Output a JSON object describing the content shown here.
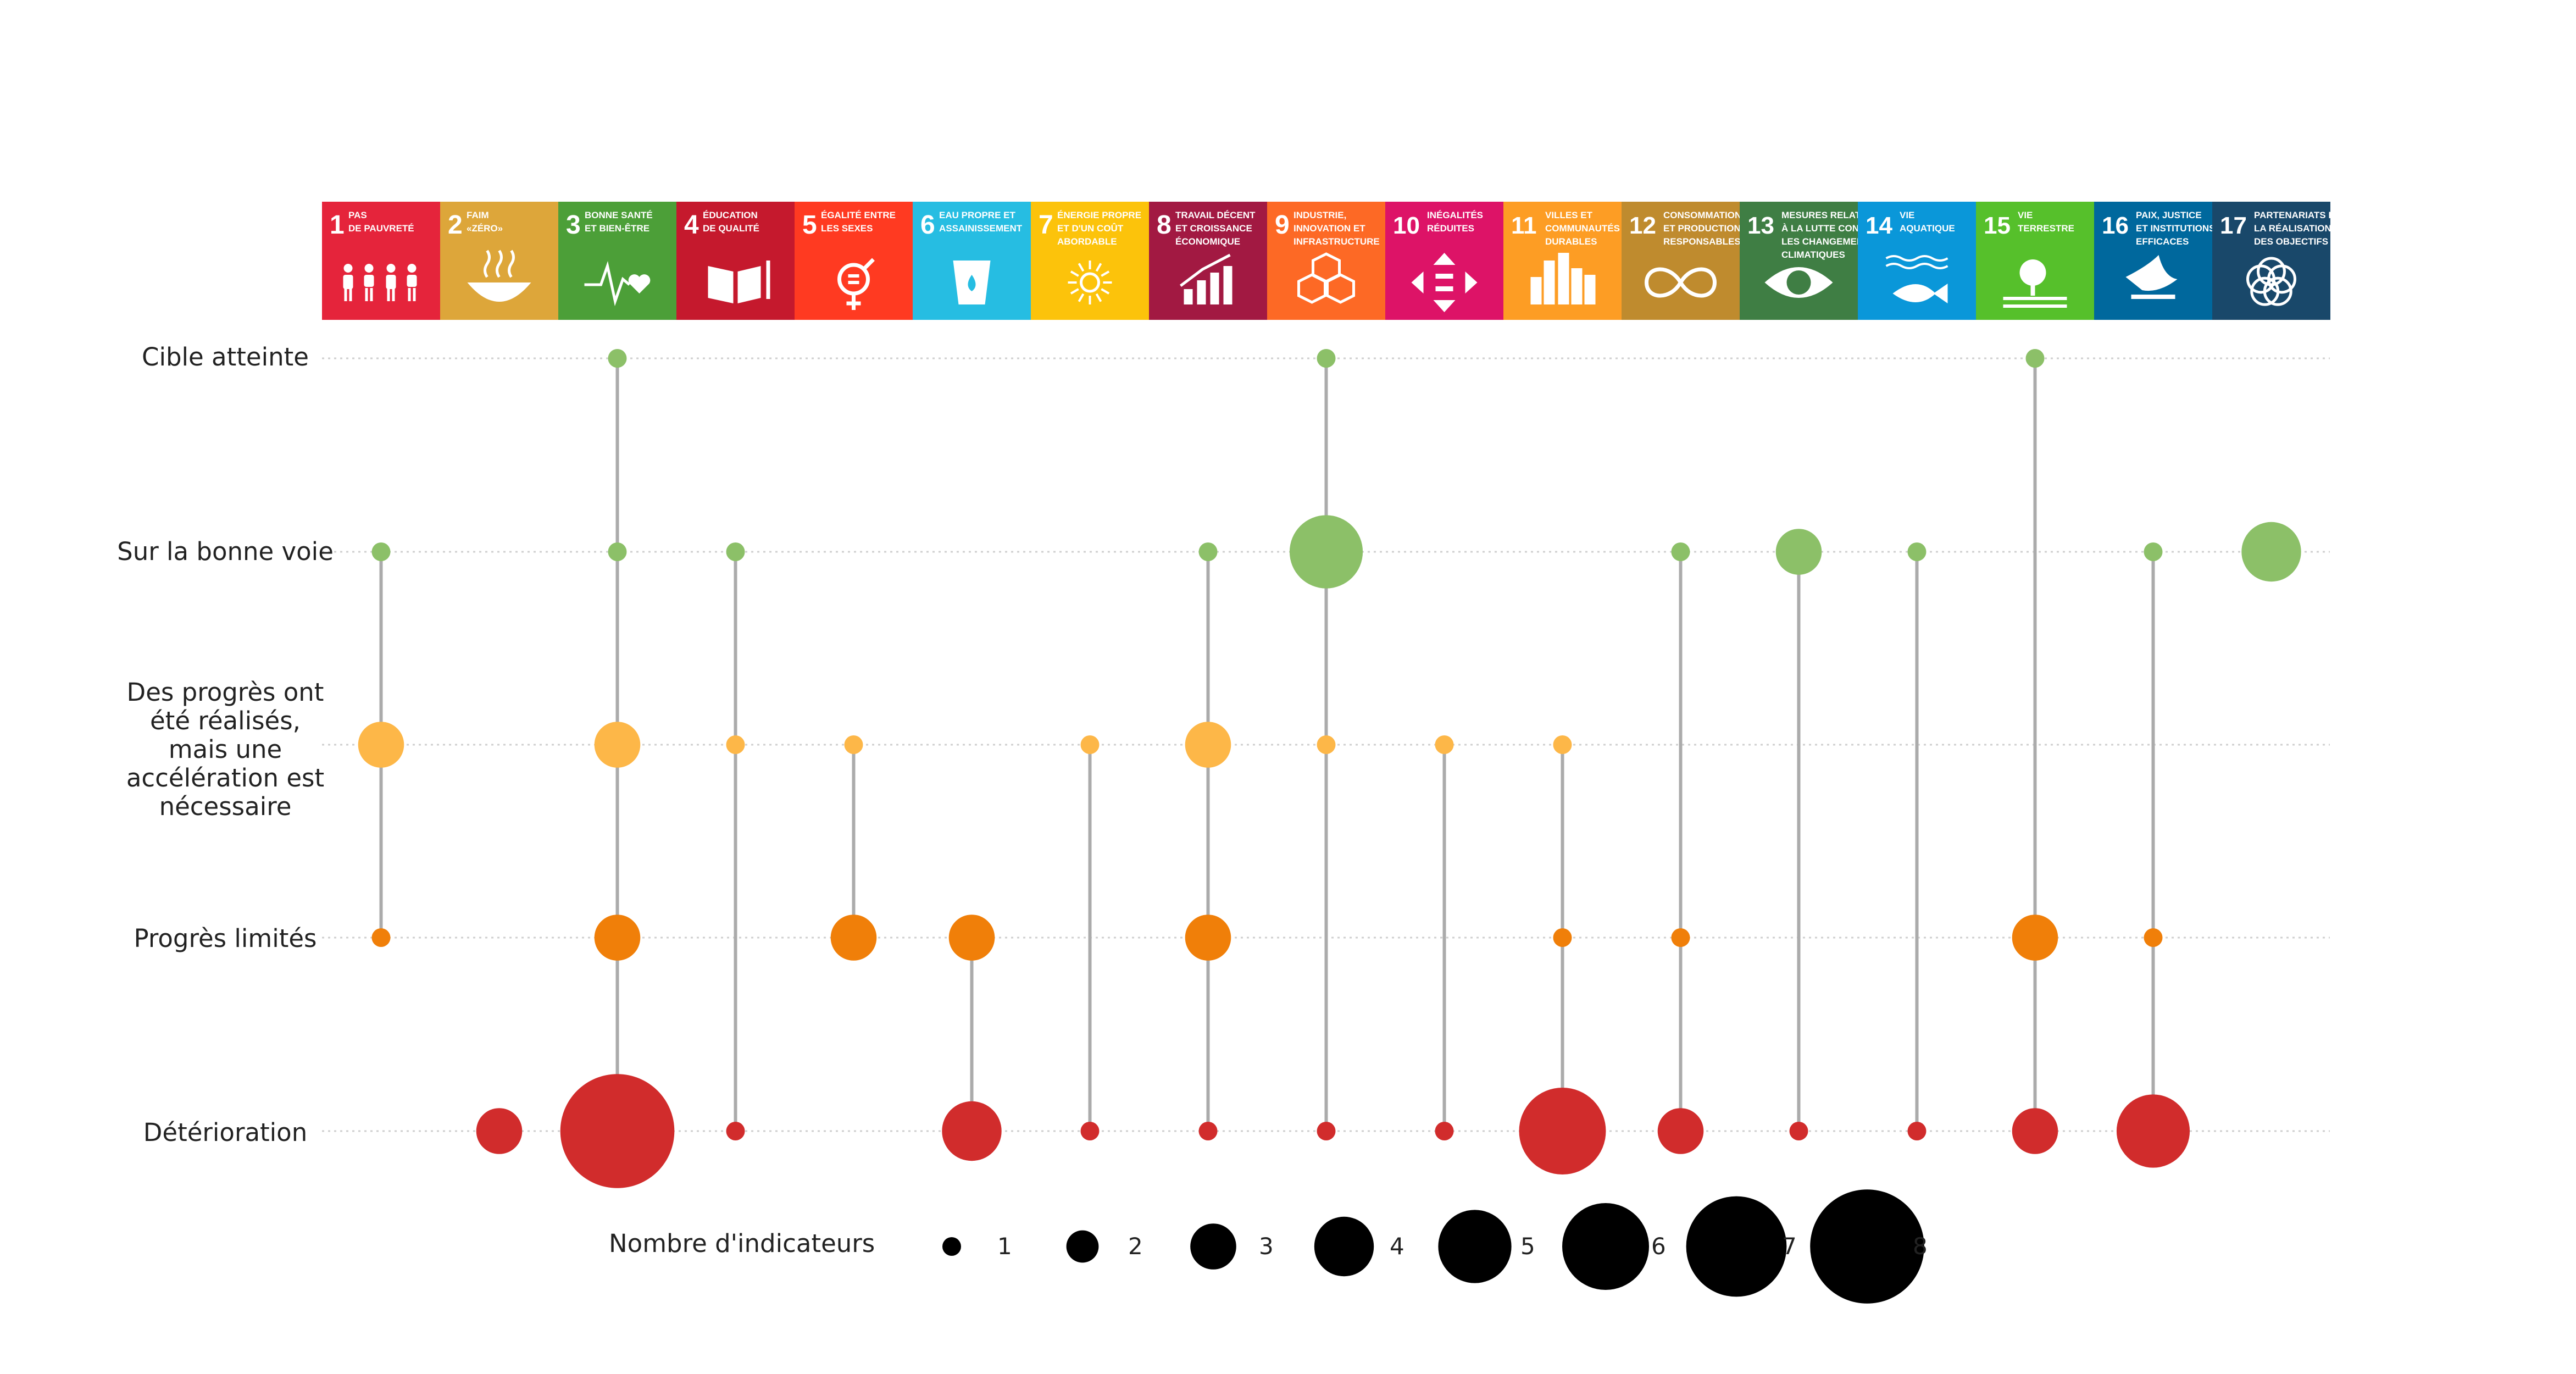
{
  "chart_data": {
    "type": "scatter",
    "title": "",
    "xlabel": "",
    "ylabel": "",
    "categories": [
      {
        "num": "1",
        "label": [
          "PAS",
          "DE PAUVRETÉ"
        ],
        "color": "#E5243B",
        "icon": "family-icon"
      },
      {
        "num": "2",
        "label": [
          "FAIM",
          "«ZÉRO»"
        ],
        "color": "#DDA63A",
        "icon": "bowl-icon"
      },
      {
        "num": "3",
        "label": [
          "BONNE SANTÉ",
          "ET BIEN-ÊTRE"
        ],
        "color": "#4C9F38",
        "icon": "heartbeat-icon"
      },
      {
        "num": "4",
        "label": [
          "ÉDUCATION",
          "DE QUALITÉ"
        ],
        "color": "#C5192D",
        "icon": "book-icon"
      },
      {
        "num": "5",
        "label": [
          "ÉGALITÉ ENTRE",
          "LES SEXES"
        ],
        "color": "#FF3A21",
        "icon": "gender-icon"
      },
      {
        "num": "6",
        "label": [
          "EAU PROPRE ET",
          "ASSAINISSEMENT"
        ],
        "color": "#26BDE2",
        "icon": "water-icon"
      },
      {
        "num": "7",
        "label": [
          "ÉNERGIE PROPRE",
          "ET D'UN COÛT",
          "ABORDABLE"
        ],
        "color": "#FCC30B",
        "icon": "sun-icon"
      },
      {
        "num": "8",
        "label": [
          "TRAVAIL DÉCENT",
          "ET CROISSANCE",
          "ÉCONOMIQUE"
        ],
        "color": "#A21942",
        "icon": "growth-icon"
      },
      {
        "num": "9",
        "label": [
          "INDUSTRIE,",
          "INNOVATION ET",
          "INFRASTRUCTURE"
        ],
        "color": "#FD6925",
        "icon": "cubes-icon"
      },
      {
        "num": "10",
        "label": [
          "INÉGALITÉS",
          "RÉDUITES"
        ],
        "color": "#DD1367",
        "icon": "equality-arrows-icon"
      },
      {
        "num": "11",
        "label": [
          "VILLES ET",
          "COMMUNAUTÉS",
          "DURABLES"
        ],
        "color": "#FD9D24",
        "icon": "city-icon"
      },
      {
        "num": "12",
        "label": [
          "CONSOMMATION",
          "ET PRODUCTION",
          "RESPONSABLES"
        ],
        "color": "#BF8B2E",
        "icon": "infinity-icon"
      },
      {
        "num": "13",
        "label": [
          "MESURES RELATIVES",
          "À LA LUTTE CONTRE",
          "LES CHANGEMENTS",
          "CLIMATIQUES"
        ],
        "color": "#3F7E44",
        "icon": "eye-globe-icon"
      },
      {
        "num": "14",
        "label": [
          "VIE",
          "AQUATIQUE"
        ],
        "color": "#0A97D9",
        "icon": "fish-icon"
      },
      {
        "num": "15",
        "label": [
          "VIE",
          "TERRESTRE"
        ],
        "color": "#56C02B",
        "icon": "tree-icon"
      },
      {
        "num": "16",
        "label": [
          "PAIX, JUSTICE",
          "ET INSTITUTIONS",
          "EFFICACES"
        ],
        "color": "#00689D",
        "icon": "dove-icon"
      },
      {
        "num": "17",
        "label": [
          "PARTENARIATS POUR",
          "LA RÉALISATION",
          "DES OBJECTIFS"
        ],
        "color": "#19486A",
        "icon": "rings-icon"
      }
    ],
    "levels": [
      {
        "key": "cible",
        "label": "Cible atteinte",
        "color": "#8CC068"
      },
      {
        "key": "bonne_voie",
        "label": "Sur la bonne voie",
        "color": "#8CC068"
      },
      {
        "key": "acceleration",
        "label": "Des progrès ont été réalisés, mais une accélération est nécessaire",
        "color": "#FDB748"
      },
      {
        "key": "limites",
        "label": "Progrès limités",
        "color": "#F07F09"
      },
      {
        "key": "deterioration",
        "label": "Détérioration",
        "color": "#D12C2C"
      }
    ],
    "points": [
      {
        "sdg": "1",
        "level": "bonne_voie",
        "count": 1
      },
      {
        "sdg": "1",
        "level": "acceleration",
        "count": 3
      },
      {
        "sdg": "1",
        "level": "limites",
        "count": 1
      },
      {
        "sdg": "2",
        "level": "deterioration",
        "count": 3
      },
      {
        "sdg": "3",
        "level": "cible",
        "count": 1
      },
      {
        "sdg": "3",
        "level": "bonne_voie",
        "count": 1
      },
      {
        "sdg": "3",
        "level": "acceleration",
        "count": 3
      },
      {
        "sdg": "3",
        "level": "limites",
        "count": 3
      },
      {
        "sdg": "3",
        "level": "deterioration",
        "count": 8
      },
      {
        "sdg": "4",
        "level": "bonne_voie",
        "count": 1
      },
      {
        "sdg": "4",
        "level": "acceleration",
        "count": 1
      },
      {
        "sdg": "4",
        "level": "deterioration",
        "count": 1
      },
      {
        "sdg": "5",
        "level": "acceleration",
        "count": 1
      },
      {
        "sdg": "5",
        "level": "limites",
        "count": 3
      },
      {
        "sdg": "6",
        "level": "limites",
        "count": 3
      },
      {
        "sdg": "6",
        "level": "deterioration",
        "count": 4
      },
      {
        "sdg": "7",
        "level": "acceleration",
        "count": 1
      },
      {
        "sdg": "7",
        "level": "deterioration",
        "count": 1
      },
      {
        "sdg": "8",
        "level": "bonne_voie",
        "count": 1
      },
      {
        "sdg": "8",
        "level": "acceleration",
        "count": 3
      },
      {
        "sdg": "8",
        "level": "limites",
        "count": 3
      },
      {
        "sdg": "8",
        "level": "deterioration",
        "count": 1
      },
      {
        "sdg": "9",
        "level": "cible",
        "count": 1
      },
      {
        "sdg": "9",
        "level": "bonne_voie",
        "count": 5
      },
      {
        "sdg": "9",
        "level": "acceleration",
        "count": 1
      },
      {
        "sdg": "9",
        "level": "deterioration",
        "count": 1
      },
      {
        "sdg": "10",
        "level": "acceleration",
        "count": 1
      },
      {
        "sdg": "10",
        "level": "deterioration",
        "count": 1
      },
      {
        "sdg": "11",
        "level": "acceleration",
        "count": 1
      },
      {
        "sdg": "11",
        "level": "limites",
        "count": 1
      },
      {
        "sdg": "11",
        "level": "deterioration",
        "count": 6
      },
      {
        "sdg": "12",
        "level": "bonne_voie",
        "count": 1
      },
      {
        "sdg": "12",
        "level": "limites",
        "count": 1
      },
      {
        "sdg": "12",
        "level": "deterioration",
        "count": 3
      },
      {
        "sdg": "13",
        "level": "bonne_voie",
        "count": 3
      },
      {
        "sdg": "13",
        "level": "deterioration",
        "count": 1
      },
      {
        "sdg": "14",
        "level": "bonne_voie",
        "count": 1
      },
      {
        "sdg": "14",
        "level": "deterioration",
        "count": 1
      },
      {
        "sdg": "15",
        "level": "cible",
        "count": 1
      },
      {
        "sdg": "15",
        "level": "limites",
        "count": 3
      },
      {
        "sdg": "15",
        "level": "deterioration",
        "count": 3
      },
      {
        "sdg": "16",
        "level": "bonne_voie",
        "count": 1
      },
      {
        "sdg": "16",
        "level": "limites",
        "count": 1
      },
      {
        "sdg": "16",
        "level": "deterioration",
        "count": 5
      },
      {
        "sdg": "17",
        "level": "bonne_voie",
        "count": 4
      }
    ],
    "legend": {
      "title": "Nombre d'indicateurs",
      "sizes": [
        "1",
        "2",
        "3",
        "4",
        "5",
        "6",
        "7",
        "8"
      ],
      "color": "#000000",
      "placement": "bottom"
    },
    "grid": true,
    "connector_color": "#ABABAB"
  }
}
